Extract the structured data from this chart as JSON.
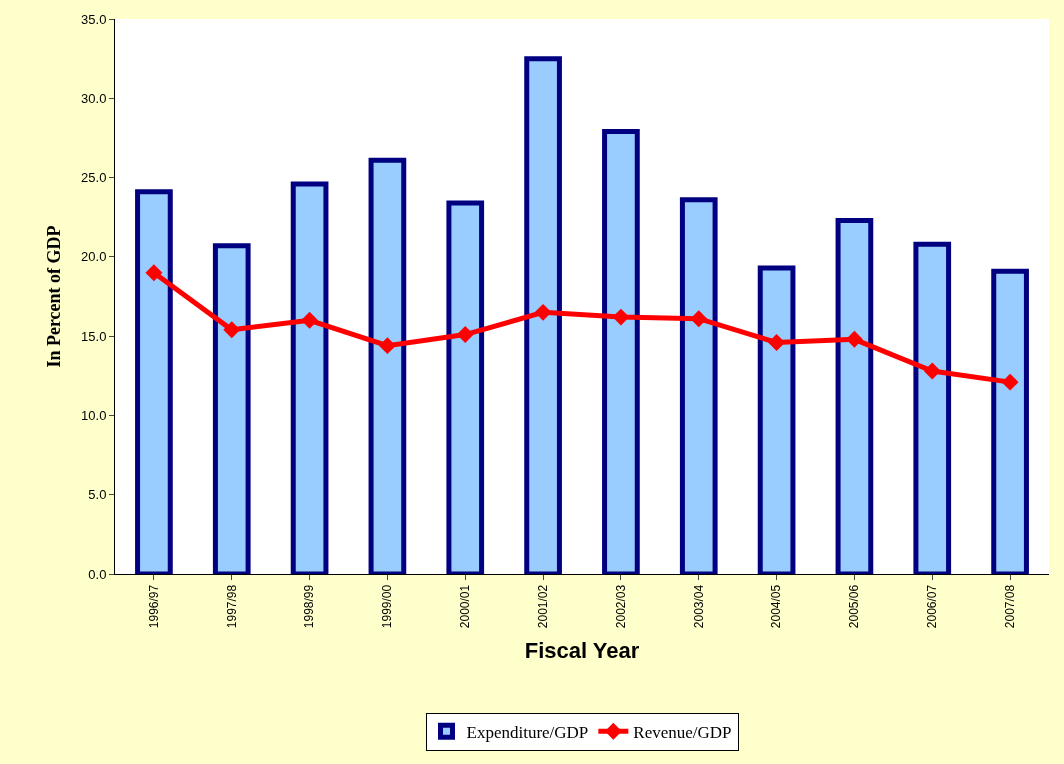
{
  "chart_data": {
    "type": "bar",
    "xlabel": "Fiscal Year",
    "ylabel": "In Percent of GDP",
    "categories": [
      "1996/97",
      "1997/98",
      "1998/99",
      "1999/00",
      "2000/01",
      "2001/02",
      "2002/03",
      "2003/04",
      "2004/05",
      "2005/06",
      "2006/07",
      "2007/08"
    ],
    "series": [
      {
        "name": "Expenditure/GDP",
        "color": "#99ccff",
        "values": [
          24.1,
          20.7,
          24.6,
          26.1,
          23.4,
          32.5,
          27.9,
          23.6,
          19.3,
          22.3,
          20.8,
          19.1
        ]
      },
      {
        "name": "Revenue/GDP",
        "type": "line",
        "color": "#ff0000",
        "marker": "diamond",
        "values": [
          19.0,
          15.4,
          16.0,
          14.4,
          15.1,
          16.5,
          16.2,
          16.1,
          14.6,
          14.8,
          12.8,
          12.1
        ]
      }
    ],
    "ylim": [
      0,
      35
    ],
    "yticks": [
      {
        "value": 0,
        "label": "0.0"
      },
      {
        "value": 5,
        "label": "5.0"
      },
      {
        "value": 10,
        "label": "10.0"
      },
      {
        "value": 15,
        "label": "15.0"
      },
      {
        "value": 20,
        "label": "20.0"
      },
      {
        "value": 25,
        "label": "25.0"
      },
      {
        "value": 30,
        "label": "30.0"
      },
      {
        "value": 35,
        "label": "35.0"
      }
    ],
    "legend": "bottom"
  }
}
